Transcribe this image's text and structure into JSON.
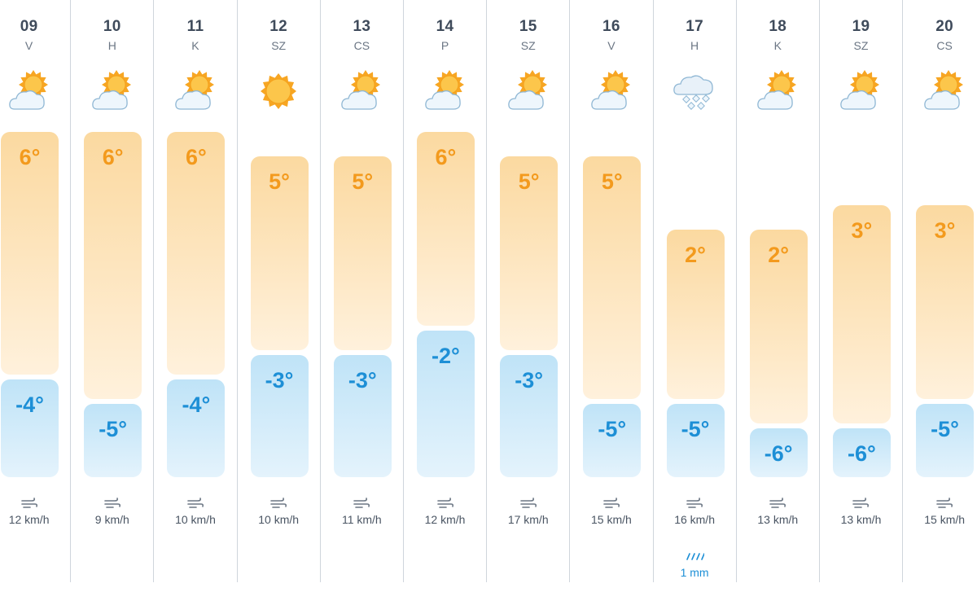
{
  "days": [
    {
      "num": "09",
      "name": "V",
      "weather": "sun-cloud-icon",
      "high": "6°",
      "low": "-4°",
      "high_c": 6,
      "low_c": -4,
      "wind": "12 km/h"
    },
    {
      "num": "10",
      "name": "H",
      "weather": "sun-cloud-icon",
      "high": "6°",
      "low": "-5°",
      "high_c": 6,
      "low_c": -5,
      "wind": "9 km/h"
    },
    {
      "num": "11",
      "name": "K",
      "weather": "sun-cloud-icon",
      "high": "6°",
      "low": "-4°",
      "high_c": 6,
      "low_c": -4,
      "wind": "10 km/h"
    },
    {
      "num": "12",
      "name": "SZ",
      "weather": "sun-icon",
      "high": "5°",
      "low": "-3°",
      "high_c": 5,
      "low_c": -3,
      "wind": "10 km/h"
    },
    {
      "num": "13",
      "name": "CS",
      "weather": "sun-cloud-icon",
      "high": "5°",
      "low": "-3°",
      "high_c": 5,
      "low_c": -3,
      "wind": "11 km/h"
    },
    {
      "num": "14",
      "name": "P",
      "weather": "sun-cloud-icon",
      "high": "6°",
      "low": "-2°",
      "high_c": 6,
      "low_c": -2,
      "wind": "12 km/h"
    },
    {
      "num": "15",
      "name": "SZ",
      "weather": "sun-cloud-icon",
      "high": "5°",
      "low": "-3°",
      "high_c": 5,
      "low_c": -3,
      "wind": "17 km/h"
    },
    {
      "num": "16",
      "name": "V",
      "weather": "sun-cloud-icon",
      "high": "5°",
      "low": "-5°",
      "high_c": 5,
      "low_c": -5,
      "wind": "15 km/h"
    },
    {
      "num": "17",
      "name": "H",
      "weather": "snow-cloud-icon",
      "high": "2°",
      "low": "-5°",
      "high_c": 2,
      "low_c": -5,
      "wind": "16 km/h",
      "precip": "1 mm"
    },
    {
      "num": "18",
      "name": "K",
      "weather": "sun-cloud-icon",
      "high": "2°",
      "low": "-6°",
      "high_c": 2,
      "low_c": -6,
      "wind": "13 km/h"
    },
    {
      "num": "19",
      "name": "SZ",
      "weather": "sun-cloud-icon",
      "high": "3°",
      "low": "-6°",
      "high_c": 3,
      "low_c": -6,
      "wind": "13 km/h"
    },
    {
      "num": "20",
      "name": "CS",
      "weather": "sun-cloud-icon",
      "high": "3°",
      "low": "-5°",
      "high_c": 3,
      "low_c": -5,
      "wind": "15 km/h"
    }
  ],
  "colors": {
    "high_text": "#f39a1d",
    "low_text": "#1d8fd6",
    "high_bar": "#fbd9a0",
    "low_bar": "#bfe3f7"
  }
}
